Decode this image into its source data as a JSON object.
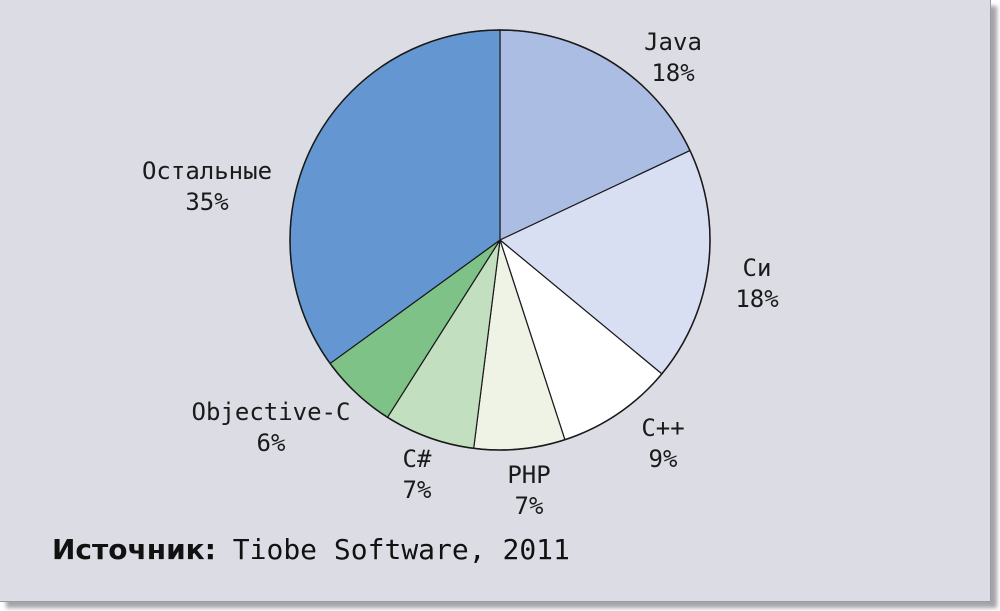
{
  "chart_data": {
    "type": "pie",
    "title": "",
    "slices": [
      {
        "label": "Java",
        "value": 18,
        "value_label": "18%",
        "color": "#abbde3"
      },
      {
        "label": "Си",
        "value": 18,
        "value_label": "18%",
        "color": "#d9dff2"
      },
      {
        "label": "C++",
        "value": 9,
        "value_label": "9%",
        "color": "#ffffff"
      },
      {
        "label": "PHP",
        "value": 7,
        "value_label": "7%",
        "color": "#eef3e6"
      },
      {
        "label": "C#",
        "value": 7,
        "value_label": "7%",
        "color": "#c2e0c0"
      },
      {
        "label": "Objective-C",
        "value": 6,
        "value_label": "6%",
        "color": "#7ec287"
      },
      {
        "label": "Остальные",
        "value": 35,
        "value_label": "35%",
        "color": "#6497d2"
      }
    ],
    "start": "12 o'clock",
    "direction": "clockwise"
  },
  "footer": {
    "source_label": "Источник:",
    "source_text": " Tiobe Software, 2011"
  },
  "colors": {
    "background": "#dcdce5",
    "slice_border": "#1a1a1a"
  }
}
